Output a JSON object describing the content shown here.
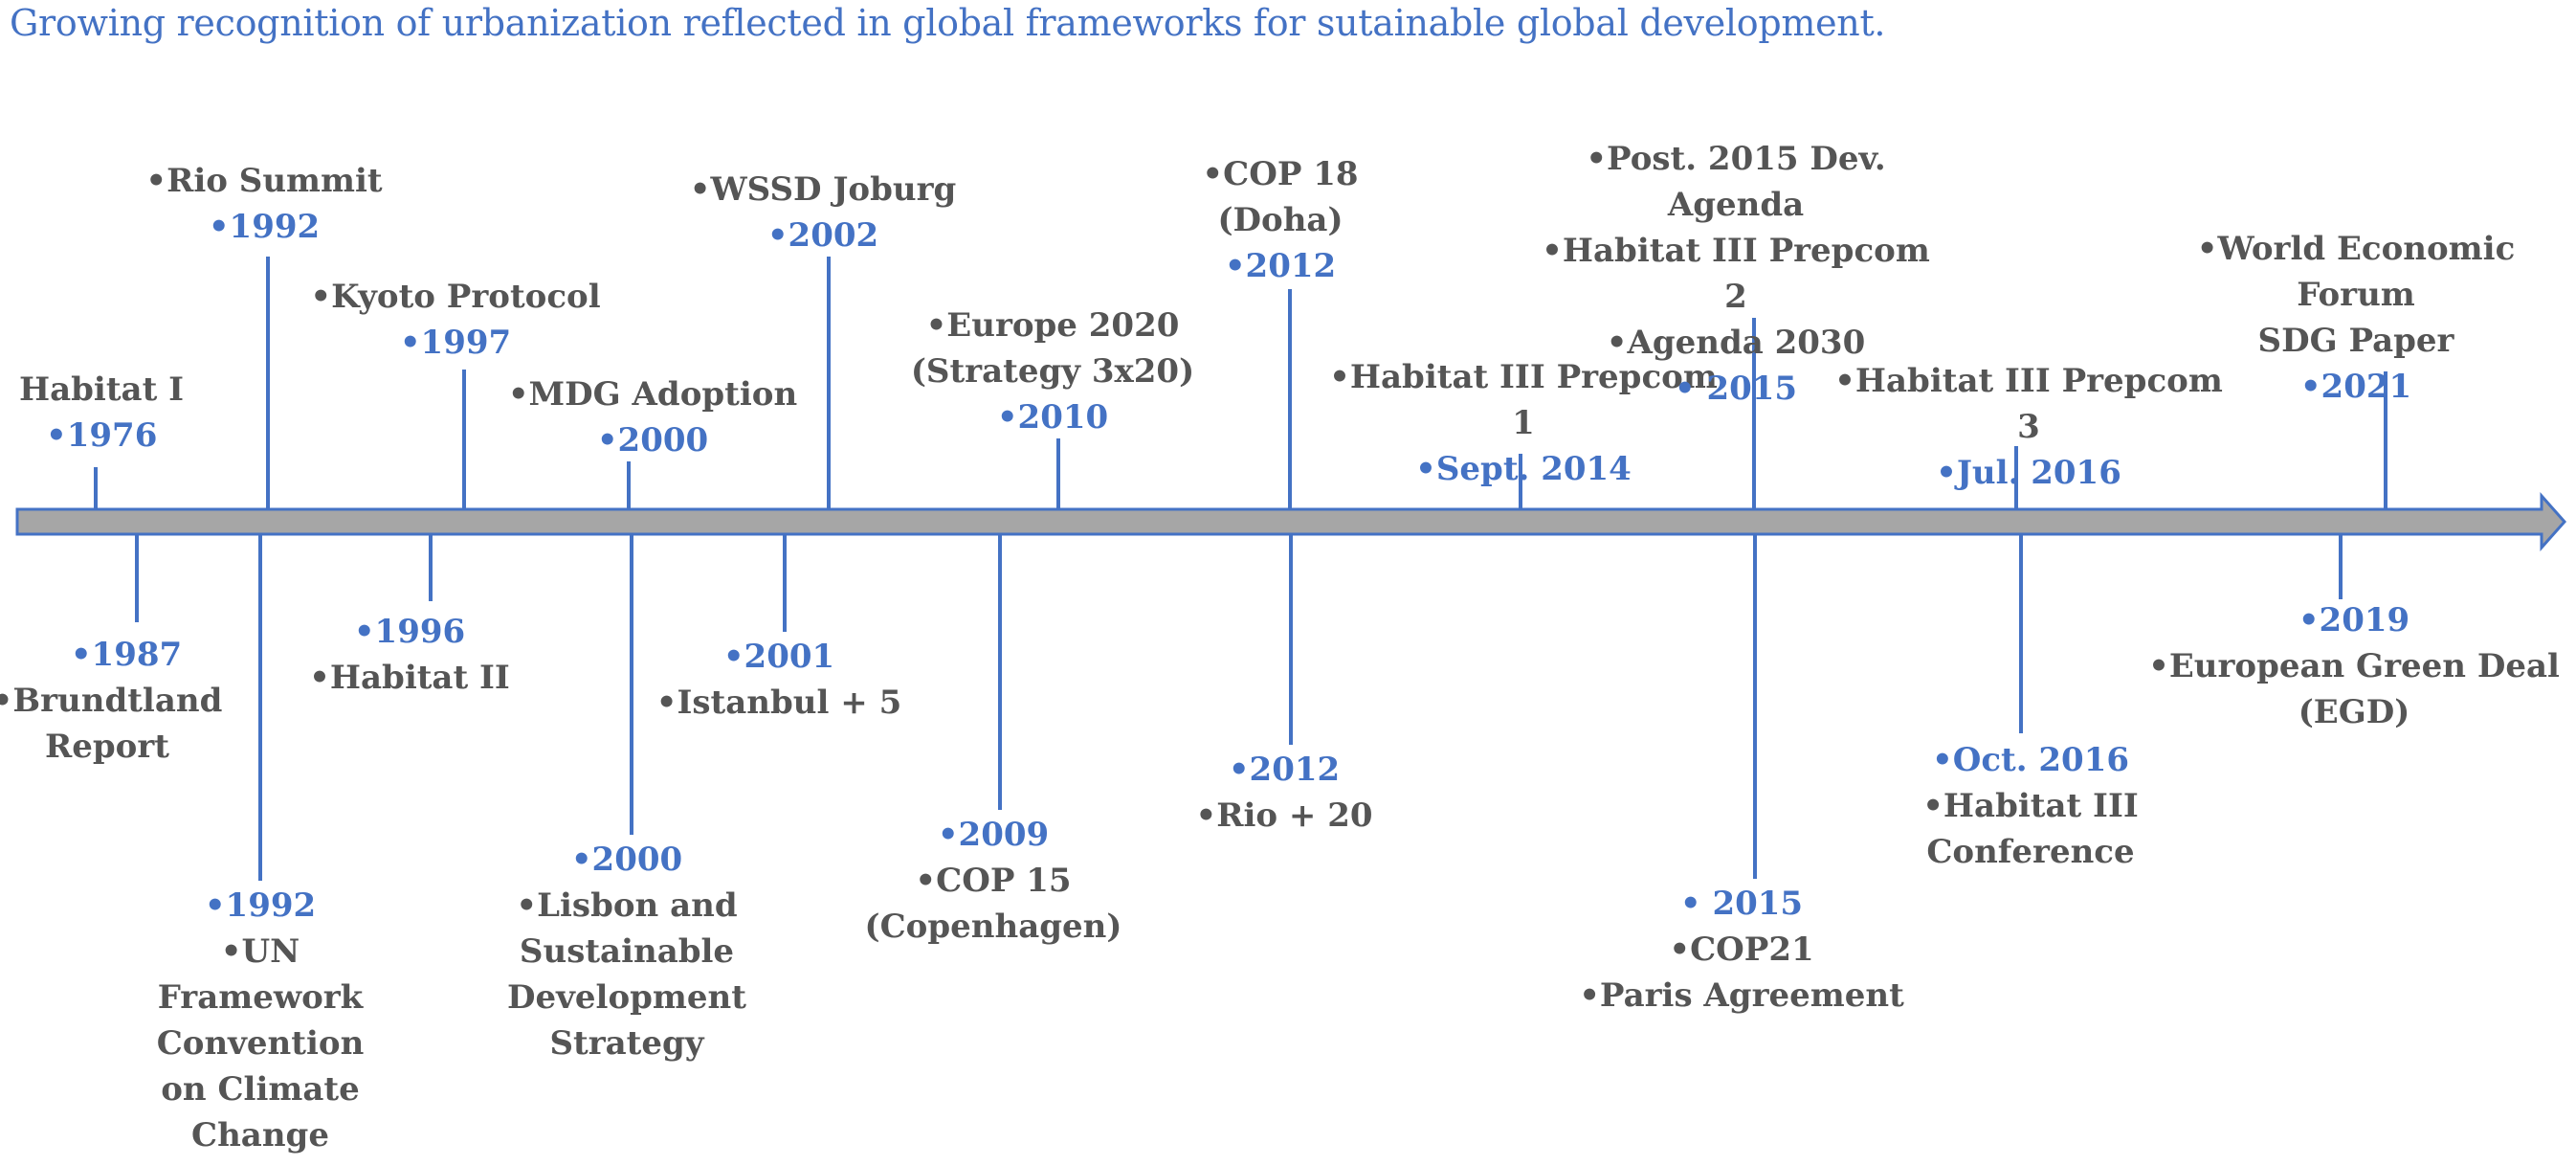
{
  "title": "Growing recognition of urbanization reflected in global frameworks for sutainable global development.",
  "colors": {
    "date": "#4472c4",
    "label": "#555555",
    "stem": "#4472c4",
    "arrow": "#a6a6a6",
    "arrow_edge": "#4472c4"
  },
  "events_above": [
    {
      "label": "Habitat I",
      "year": "•1976"
    },
    {
      "label": "•Rio Summit",
      "year": "•1992"
    },
    {
      "label": "•Kyoto Protocol",
      "year": "•1997"
    },
    {
      "label": "•MDG Adoption",
      "year": "•2000"
    },
    {
      "label": "•WSSD Joburg",
      "year": "•2002"
    },
    {
      "label": "•Europe 2020\n(Strategy 3x20)",
      "year": "•2010"
    },
    {
      "label": "•COP 18\n(Doha)",
      "year": "•2012"
    },
    {
      "label": "•Habitat III Prepcom 1",
      "year": "•Sept. 2014"
    },
    {
      "label": "•Post. 2015 Dev. Agenda\n•Habitat III Prepcom 2\n•Agenda 2030",
      "year": "• 2015"
    },
    {
      "label": "•Habitat III  Prepcom 3",
      "year": "•Jul. 2016"
    },
    {
      "label": "•World Economic Forum\nSDG Paper",
      "year": "•2021"
    }
  ],
  "events_below": [
    {
      "year": "•1987",
      "label": "•Brundtland\nReport"
    },
    {
      "year": "•1992",
      "label": "•UN\nFramework\nConvention\non Climate\nChange"
    },
    {
      "year": "•1996",
      "label": "•Habitat II"
    },
    {
      "year": "•2000",
      "label": "•Lisbon and\nSustainable\nDevelopment\nStrategy"
    },
    {
      "year": "•2001",
      "label": "•Istanbul + 5"
    },
    {
      "year": "•2009",
      "label": "•COP 15\n(Copenhagen)"
    },
    {
      "year": "•2012",
      "label": "•Rio + 20"
    },
    {
      "year": "• 2015",
      "label": "•COP21\n•Paris Agreement"
    },
    {
      "year": "•Oct. 2016",
      "label": "•Habitat III Conference"
    },
    {
      "year": "•2019",
      "label": "•European Green Deal\n(EGD)"
    }
  ]
}
